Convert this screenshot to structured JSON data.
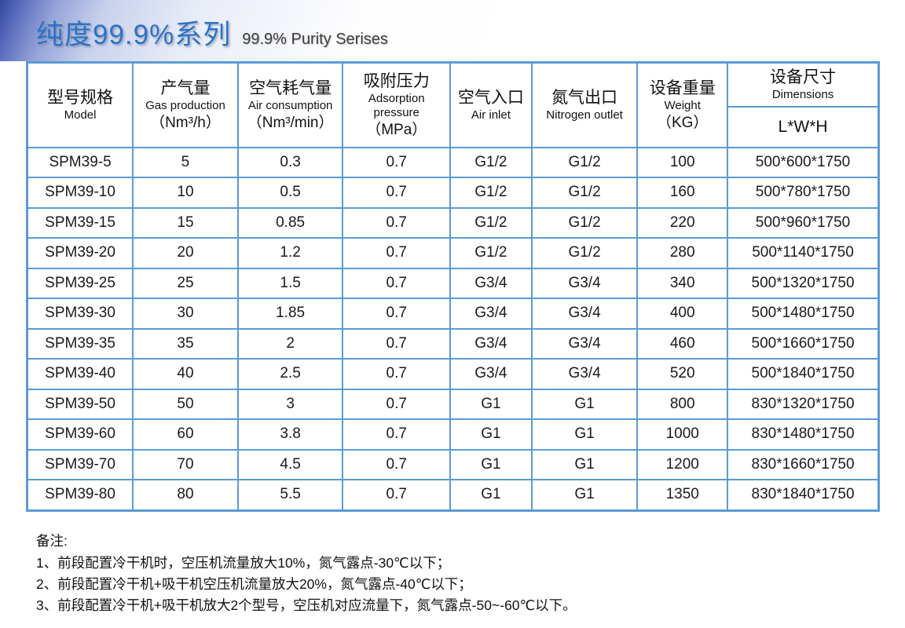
{
  "header": {
    "title_cn": "纯度99.9%系列",
    "title_en": "99.9% Purity Serises"
  },
  "table": {
    "column_keys": [
      "model",
      "gas-production",
      "air-consumption",
      "adsorption-pressure",
      "air-inlet",
      "nitrogen-outlet",
      "weight",
      "dimensions"
    ],
    "columns": [
      {
        "cn": "型号规格",
        "en": "Model"
      },
      {
        "cn": "产气量",
        "en": "Gas production",
        "unit": "（Nm³/h）"
      },
      {
        "cn": "空气耗气量",
        "en": "Air consumption",
        "unit": "（Nm³/min）"
      },
      {
        "cn": "吸附压力",
        "en": "Adsorption pressure",
        "unit": "（MPa）"
      },
      {
        "cn": "空气入口",
        "en": "Air inlet"
      },
      {
        "cn": "氮气出口",
        "en": "Nitrogen outlet"
      },
      {
        "cn": "设备重量",
        "en": "Weight",
        "unit": "（KG）"
      },
      {
        "cn": "设备尺寸",
        "en": "Dimensions",
        "sub": "L*W*H"
      }
    ],
    "rows": [
      [
        "SPM39-5",
        "5",
        "0.3",
        "0.7",
        "G1/2",
        "G1/2",
        "100",
        "500*600*1750"
      ],
      [
        "SPM39-10",
        "10",
        "0.5",
        "0.7",
        "G1/2",
        "G1/2",
        "160",
        "500*780*1750"
      ],
      [
        "SPM39-15",
        "15",
        "0.85",
        "0.7",
        "G1/2",
        "G1/2",
        "220",
        "500*960*1750"
      ],
      [
        "SPM39-20",
        "20",
        "1.2",
        "0.7",
        "G1/2",
        "G1/2",
        "280",
        "500*1140*1750"
      ],
      [
        "SPM39-25",
        "25",
        "1.5",
        "0.7",
        "G3/4",
        "G3/4",
        "340",
        "500*1320*1750"
      ],
      [
        "SPM39-30",
        "30",
        "1.85",
        "0.7",
        "G3/4",
        "G3/4",
        "400",
        "500*1480*1750"
      ],
      [
        "SPM39-35",
        "35",
        "2",
        "0.7",
        "G3/4",
        "G3/4",
        "460",
        "500*1660*1750"
      ],
      [
        "SPM39-40",
        "40",
        "2.5",
        "0.7",
        "G3/4",
        "G3/4",
        "520",
        "500*1840*1750"
      ],
      [
        "SPM39-50",
        "50",
        "3",
        "0.7",
        "G1",
        "G1",
        "800",
        "830*1320*1750"
      ],
      [
        "SPM39-60",
        "60",
        "3.8",
        "0.7",
        "G1",
        "G1",
        "1000",
        "830*1480*1750"
      ],
      [
        "SPM39-70",
        "70",
        "4.5",
        "0.7",
        "G1",
        "G1",
        "1200",
        "830*1660*1750"
      ],
      [
        "SPM39-80",
        "80",
        "5.5",
        "0.7",
        "G1",
        "G1",
        "1350",
        "830*1840*1750"
      ]
    ]
  },
  "notes": {
    "heading": "备注:",
    "items": [
      "1、前段配置冷干机时，空压机流量放大10%，氮气露点-30℃以下；",
      "2、前段配置冷干机+吸干机空压机流量放大20%，氮气露点-40℃以下；",
      "3、前段配置冷干机+吸干机放大2个型号，空压机对应流量下，氮气露点-50~-60℃以下。"
    ]
  },
  "colors": {
    "table_border": "#5b9bd5",
    "title_blue": "#2b72c4",
    "banner_corner_blue": "#35479f"
  }
}
